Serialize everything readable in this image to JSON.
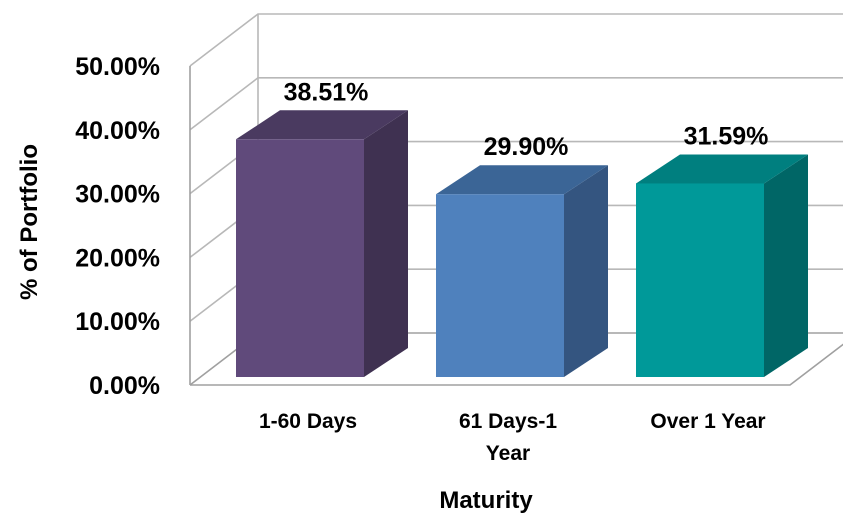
{
  "chart_data": {
    "type": "bar",
    "categories": [
      "1-60 Days",
      "61 Days-1 Year",
      "Over 1 Year"
    ],
    "category_label_lines": [
      [
        "1-60 Days"
      ],
      [
        "61 Days-1",
        "Year"
      ],
      [
        "Over 1 Year"
      ]
    ],
    "values": [
      38.51,
      29.9,
      31.59
    ],
    "data_labels": [
      "38.51%",
      "29.90%",
      "31.59%"
    ],
    "xlabel": "Maturity",
    "ylabel": "% of Portfolio",
    "ylim": [
      0,
      50
    ],
    "yticks": [
      0,
      10,
      20,
      30,
      40,
      50
    ],
    "ytick_labels": [
      "0.00%",
      "10.00%",
      "20.00%",
      "30.00%",
      "40.00%",
      "50.00%"
    ],
    "grid": true,
    "style": "3d-column",
    "colors": {
      "front": [
        "#604a7b",
        "#4f81bd",
        "#009999"
      ],
      "side": [
        "#3f3151",
        "#345580",
        "#006666"
      ],
      "top": [
        "#4a3a60",
        "#3b6596",
        "#007f7f"
      ]
    }
  }
}
